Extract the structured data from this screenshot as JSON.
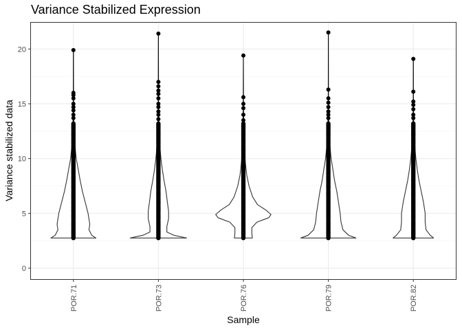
{
  "chart_data": {
    "type": "violin",
    "title": "Variance Stabilized Expression",
    "xlabel": "Sample",
    "ylabel": "Variance stabilized data",
    "categories": [
      "POR.71",
      "POR.73",
      "POR.76",
      "POR.79",
      "POR.82"
    ],
    "ylim": [
      -1,
      22.4
    ],
    "yticks": [
      0,
      5,
      10,
      15,
      20
    ],
    "grid": true,
    "legend": "none",
    "violins": [
      {
        "category": "POR.71",
        "min": 2.75,
        "max": 19.9,
        "profile": [
          [
            2.75,
            0.8
          ],
          [
            3.0,
            0.65
          ],
          [
            3.5,
            0.55
          ],
          [
            4.0,
            0.58
          ],
          [
            5.0,
            0.52
          ],
          [
            6.0,
            0.42
          ],
          [
            7.0,
            0.32
          ],
          [
            8.0,
            0.24
          ],
          [
            9.0,
            0.17
          ],
          [
            10.0,
            0.1
          ],
          [
            11.0,
            0.06
          ],
          [
            12.0,
            0.035
          ],
          [
            13.0,
            0.02
          ],
          [
            14.5,
            0.01
          ],
          [
            16.0,
            0.005
          ],
          [
            19.9,
            0.0
          ]
        ],
        "outliers": [
          16.0,
          15.8,
          15.5,
          15.0,
          14.7,
          14.4,
          14.0,
          13.7
        ]
      },
      {
        "category": "POR.73",
        "min": 2.75,
        "max": 21.4,
        "profile": [
          [
            2.75,
            1.0
          ],
          [
            3.0,
            0.55
          ],
          [
            3.3,
            0.3
          ],
          [
            3.8,
            0.3
          ],
          [
            4.5,
            0.36
          ],
          [
            5.2,
            0.36
          ],
          [
            6.0,
            0.32
          ],
          [
            7.0,
            0.27
          ],
          [
            8.0,
            0.2
          ],
          [
            9.0,
            0.14
          ],
          [
            10.0,
            0.09
          ],
          [
            11.0,
            0.055
          ],
          [
            12.0,
            0.03
          ],
          [
            13.0,
            0.018
          ],
          [
            14.5,
            0.008
          ],
          [
            16.5,
            0.004
          ],
          [
            21.4,
            0.0
          ]
        ],
        "outliers": [
          17.0,
          16.6,
          16.2,
          15.9,
          15.5,
          15.0,
          14.7,
          14.3,
          14.0,
          13.6
        ]
      },
      {
        "category": "POR.76",
        "min": 2.75,
        "max": 19.4,
        "profile": [
          [
            2.75,
            0.32
          ],
          [
            3.2,
            0.3
          ],
          [
            3.7,
            0.3
          ],
          [
            4.2,
            0.48
          ],
          [
            4.6,
            0.9
          ],
          [
            4.9,
            0.98
          ],
          [
            5.3,
            0.8
          ],
          [
            5.8,
            0.5
          ],
          [
            6.5,
            0.33
          ],
          [
            7.5,
            0.2
          ],
          [
            8.5,
            0.12
          ],
          [
            9.5,
            0.075
          ],
          [
            10.5,
            0.045
          ],
          [
            11.5,
            0.028
          ],
          [
            13.0,
            0.014
          ],
          [
            15.0,
            0.006
          ],
          [
            19.4,
            0.0
          ]
        ],
        "outliers": [
          15.6,
          15.0,
          14.6,
          14.0,
          13.5,
          13.0
        ]
      },
      {
        "category": "POR.79",
        "min": 2.75,
        "max": 21.5,
        "profile": [
          [
            2.75,
            0.98
          ],
          [
            3.0,
            0.72
          ],
          [
            3.5,
            0.52
          ],
          [
            4.2,
            0.45
          ],
          [
            5.0,
            0.42
          ],
          [
            6.0,
            0.36
          ],
          [
            7.0,
            0.3
          ],
          [
            8.0,
            0.22
          ],
          [
            9.0,
            0.16
          ],
          [
            10.0,
            0.1
          ],
          [
            11.0,
            0.06
          ],
          [
            12.0,
            0.035
          ],
          [
            13.0,
            0.02
          ],
          [
            14.5,
            0.008
          ],
          [
            16.5,
            0.003
          ],
          [
            21.5,
            0.0
          ]
        ],
        "outliers": [
          16.3,
          15.5,
          15.1,
          14.7,
          14.3,
          14.0,
          13.7
        ]
      },
      {
        "category": "POR.82",
        "min": 2.75,
        "max": 19.1,
        "profile": [
          [
            2.75,
            0.72
          ],
          [
            3.0,
            0.6
          ],
          [
            3.5,
            0.45
          ],
          [
            4.2,
            0.42
          ],
          [
            5.0,
            0.42
          ],
          [
            6.0,
            0.36
          ],
          [
            7.0,
            0.28
          ],
          [
            8.0,
            0.2
          ],
          [
            9.0,
            0.14
          ],
          [
            10.0,
            0.09
          ],
          [
            11.0,
            0.055
          ],
          [
            12.0,
            0.03
          ],
          [
            13.0,
            0.018
          ],
          [
            14.5,
            0.008
          ],
          [
            16.0,
            0.003
          ],
          [
            19.1,
            0.0
          ]
        ],
        "outliers": [
          16.1,
          15.2,
          14.9,
          14.5,
          14.0,
          13.7
        ]
      }
    ]
  }
}
